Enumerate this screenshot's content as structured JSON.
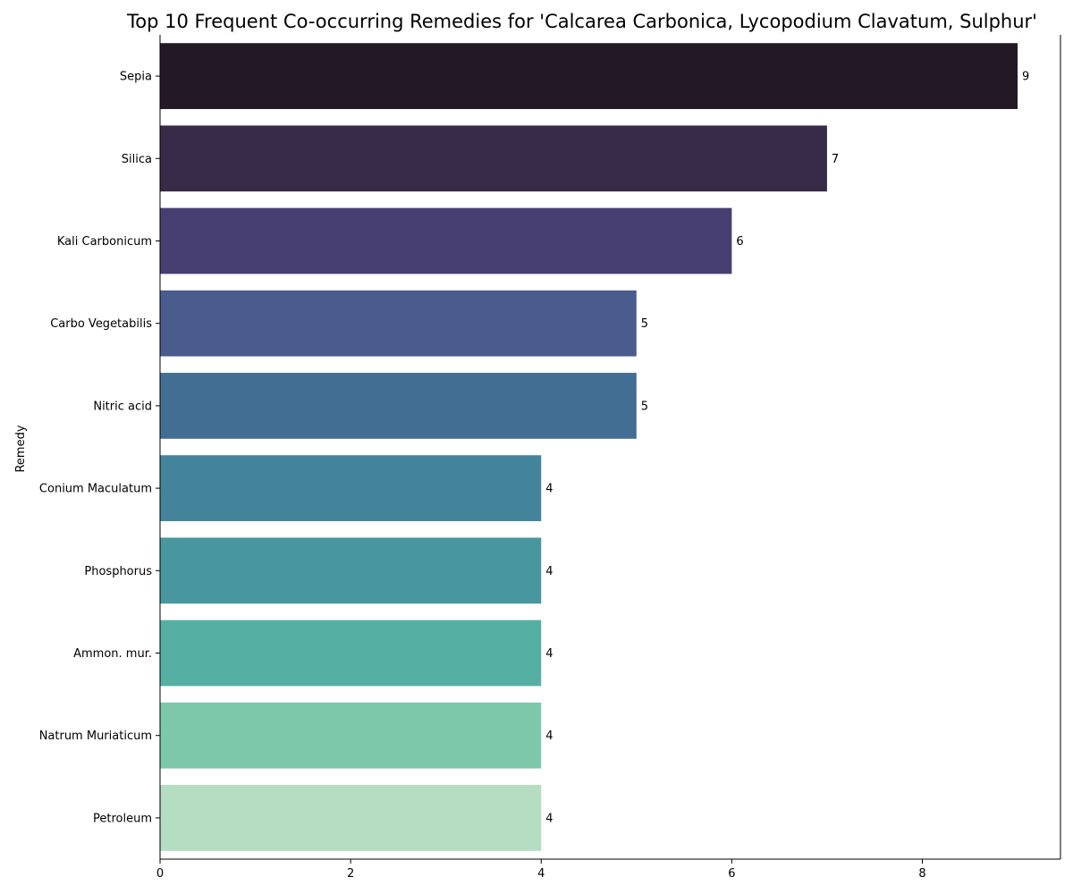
{
  "chart_data": {
    "type": "bar",
    "orientation": "horizontal",
    "title": "Top 10 Frequent Co-occurring Remedies for 'Calcarea Carbonica, Lycopodium Clavatum, Sulphur'",
    "xlabel": "",
    "ylabel": "Remedy",
    "categories": [
      "Sepia",
      "Silica",
      "Kali Carbonicum",
      "Carbo Vegetabilis",
      "Nitric acid",
      "Conium Maculatum",
      "Phosphorus",
      "Ammon. mur.",
      "Natrum Muriaticum",
      "Petroleum"
    ],
    "values": [
      9,
      7,
      6,
      5,
      5,
      4,
      4,
      4,
      4,
      4
    ],
    "data_labels": [
      "9",
      "7",
      "6",
      "5",
      "5",
      "4",
      "4",
      "4",
      "4",
      "4"
    ],
    "colors": [
      "#231926",
      "#372b48",
      "#473f72",
      "#4a5b8e",
      "#436e93",
      "#44849b",
      "#48979e",
      "#56afa3",
      "#7dc7ab",
      "#b4ddc2"
    ],
    "xlim": [
      0,
      9.45
    ],
    "xticks": [
      0,
      2,
      4,
      6,
      8
    ],
    "xtick_labels": [
      "0",
      "2",
      "4",
      "6",
      "8"
    ],
    "grid": false,
    "legend": "none"
  }
}
